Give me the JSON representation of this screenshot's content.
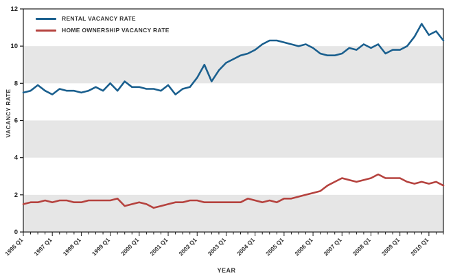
{
  "chart_data": {
    "type": "line",
    "xlabel": "YEAR",
    "ylabel": "VACANCY RATE",
    "ylim": [
      0,
      12
    ],
    "y_ticks": [
      0,
      2,
      4,
      6,
      8,
      10,
      12
    ],
    "gray_bands": [
      [
        0,
        2
      ],
      [
        4,
        6
      ],
      [
        8,
        10
      ]
    ],
    "band_color": "#e6e6e6",
    "axis_color": "#1a1a1a",
    "n_points": 59,
    "label_every": 4,
    "x_tick_labels": [
      "1996 Q1",
      "1997 Q1",
      "1998 Q1",
      "1999 Q1",
      "2000 Q1",
      "2001 Q1",
      "2002 Q1",
      "2003 Q1",
      "2004 Q1",
      "2005 Q1",
      "2006 Q1",
      "2007 Q1",
      "2008 Q1",
      "2009 Q1",
      "2010 Q1"
    ],
    "legend_position": "top-left",
    "series": [
      {
        "name": "RENTAL VACANCY RATE",
        "color": "#1a5f8e",
        "values": [
          7.5,
          7.6,
          7.9,
          7.6,
          7.4,
          7.7,
          7.6,
          7.6,
          7.5,
          7.6,
          7.8,
          7.6,
          8.0,
          7.6,
          8.1,
          7.8,
          7.8,
          7.7,
          7.7,
          7.6,
          7.9,
          7.4,
          7.7,
          7.8,
          8.3,
          9.0,
          8.1,
          8.7,
          9.1,
          9.3,
          9.5,
          9.6,
          9.8,
          10.1,
          10.3,
          10.3,
          10.2,
          10.1,
          10.0,
          10.1,
          9.9,
          9.6,
          9.5,
          9.5,
          9.6,
          9.9,
          9.8,
          10.1,
          9.9,
          10.1,
          9.6,
          9.8,
          9.8,
          10.0,
          10.5,
          11.2,
          10.6,
          10.8,
          10.3
        ]
      },
      {
        "name": "HOME OWNERSHIP VACANCY RATE",
        "color": "#b5423e",
        "values": [
          1.5,
          1.6,
          1.6,
          1.7,
          1.6,
          1.7,
          1.7,
          1.6,
          1.6,
          1.7,
          1.7,
          1.7,
          1.7,
          1.8,
          1.4,
          1.5,
          1.6,
          1.5,
          1.3,
          1.4,
          1.5,
          1.6,
          1.6,
          1.7,
          1.7,
          1.6,
          1.6,
          1.6,
          1.6,
          1.6,
          1.6,
          1.8,
          1.7,
          1.6,
          1.7,
          1.6,
          1.8,
          1.8,
          1.9,
          2.0,
          2.1,
          2.2,
          2.5,
          2.7,
          2.9,
          2.8,
          2.7,
          2.8,
          2.9,
          3.1,
          2.9,
          2.9,
          2.9,
          2.7,
          2.6,
          2.7,
          2.6,
          2.7,
          2.5
        ]
      }
    ]
  }
}
